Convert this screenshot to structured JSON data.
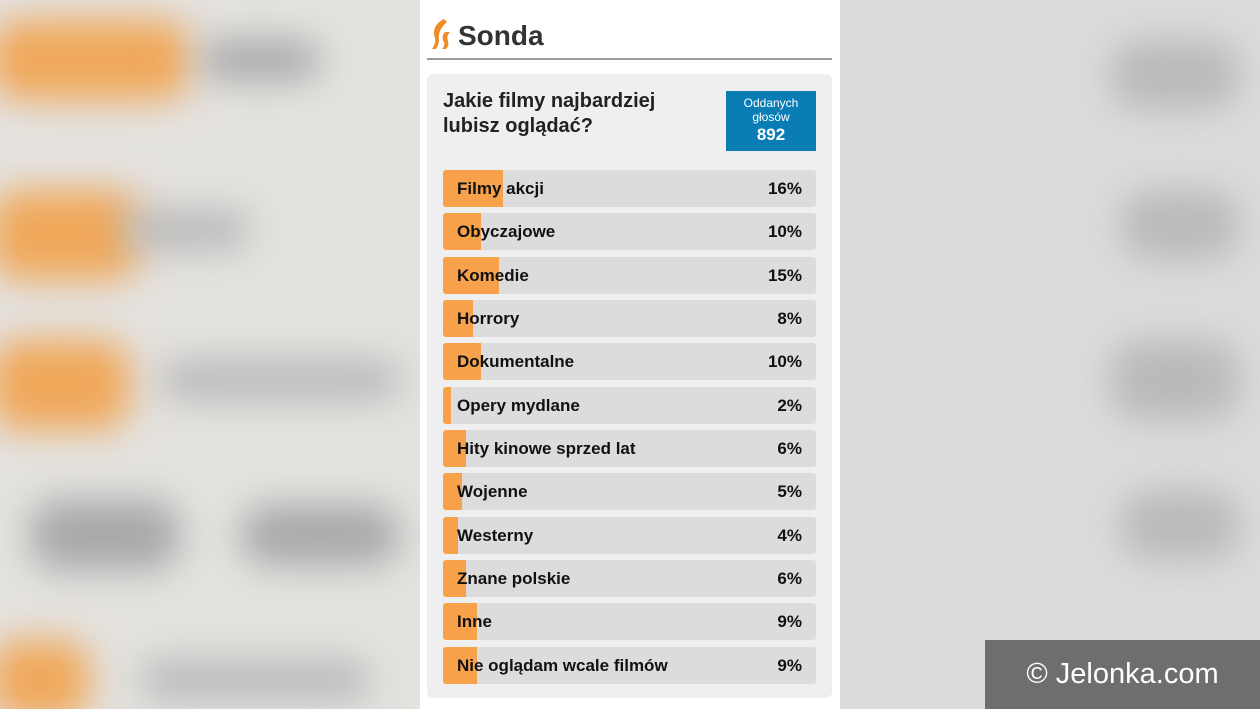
{
  "poll": {
    "section_title": "Sonda",
    "question": "Jakie filmy najbardziej lubisz oglądać?",
    "votes_label": "Oddanych głosów",
    "votes_count": "892",
    "options": [
      {
        "label": "Filmy akcji",
        "percent_text": "16%",
        "percent": 16
      },
      {
        "label": "Obyczajowe",
        "percent_text": "10%",
        "percent": 10
      },
      {
        "label": "Komedie",
        "percent_text": "15%",
        "percent": 15
      },
      {
        "label": "Horrory",
        "percent_text": "8%",
        "percent": 8
      },
      {
        "label": "Dokumentalne",
        "percent_text": "10%",
        "percent": 10
      },
      {
        "label": "Opery mydlane",
        "percent_text": "2%",
        "percent": 2
      },
      {
        "label": "Hity kinowe sprzed lat",
        "percent_text": "6%",
        "percent": 6
      },
      {
        "label": "Wojenne",
        "percent_text": "5%",
        "percent": 5
      },
      {
        "label": "Westerny",
        "percent_text": "4%",
        "percent": 4
      },
      {
        "label": "Znane polskie",
        "percent_text": "6%",
        "percent": 6
      },
      {
        "label": "Inne",
        "percent_text": "9%",
        "percent": 9
      },
      {
        "label": "Nie oglądam wcale filmów",
        "percent_text": "9%",
        "percent": 9
      }
    ]
  },
  "watermark": "© Jelonka.com",
  "colors": {
    "bar_fill": "#f7a24b",
    "bar_track": "#dcdcdc",
    "votes_badge": "#0a7db4",
    "logo": "#f08a24"
  },
  "icons": {
    "logo": "flame-logo-icon"
  }
}
